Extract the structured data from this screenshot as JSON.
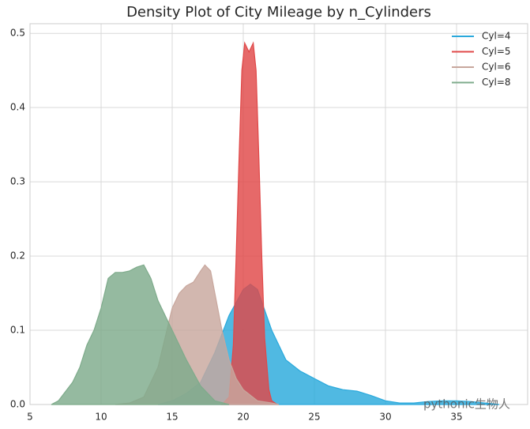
{
  "chart_data": {
    "type": "area",
    "title": "Density Plot of City Mileage by n_Cylinders",
    "xlim": [
      5,
      40
    ],
    "ylim": [
      0,
      0.513
    ],
    "xticks": [
      5,
      10,
      15,
      20,
      25,
      30,
      35
    ],
    "yticks": [
      {
        "value": 0,
        "label": "0.0"
      },
      0.1,
      0.2,
      0.3,
      0.4,
      0.5
    ],
    "grid": true,
    "legend": "upper right",
    "watermark": "pythonic生物人",
    "series": [
      {
        "name": "Cyl=4",
        "color": "#2aa9dc",
        "x": [
          14,
          15,
          16,
          17,
          18,
          19,
          20,
          20.5,
          21,
          22,
          23,
          24,
          25,
          26,
          27,
          28,
          29,
          30,
          31,
          32,
          33,
          34,
          35,
          36,
          37,
          38
        ],
        "values": [
          0,
          0.005,
          0.015,
          0.03,
          0.07,
          0.12,
          0.155,
          0.162,
          0.155,
          0.1,
          0.06,
          0.045,
          0.035,
          0.025,
          0.02,
          0.018,
          0.012,
          0.005,
          0.002,
          0.002,
          0.004,
          0.005,
          0.005,
          0.004,
          0.002,
          0
        ]
      },
      {
        "name": "Cyl=5",
        "color": "#e04848",
        "x": [
          18.5,
          19,
          19.3,
          19.5,
          19.7,
          19.9,
          20.1,
          20.4,
          20.7,
          20.9,
          21.1,
          21.3,
          21.5,
          21.8,
          22,
          22.4
        ],
        "values": [
          0,
          0.01,
          0.08,
          0.2,
          0.33,
          0.45,
          0.487,
          0.475,
          0.487,
          0.45,
          0.33,
          0.2,
          0.09,
          0.02,
          0.005,
          0
        ]
      },
      {
        "name": "Cyl=6",
        "color": "#c8a79d",
        "x": [
          11,
          12,
          13,
          14,
          14.5,
          15,
          15.5,
          16,
          16.5,
          17,
          17.3,
          17.7,
          18,
          18.5,
          19,
          19.5,
          20,
          21,
          22,
          22.5
        ],
        "values": [
          0,
          0.002,
          0.01,
          0.05,
          0.09,
          0.13,
          0.15,
          0.16,
          0.165,
          0.18,
          0.188,
          0.18,
          0.15,
          0.1,
          0.06,
          0.035,
          0.02,
          0.005,
          0.002,
          0
        ]
      },
      {
        "name": "Cyl=8",
        "color": "#7eab8b",
        "x": [
          6.5,
          7,
          8,
          8.5,
          9,
          9.5,
          10,
          10.5,
          11,
          11.5,
          12,
          12.5,
          13,
          13.5,
          14,
          14.5,
          15,
          16,
          17,
          18,
          19
        ],
        "values": [
          0,
          0.005,
          0.03,
          0.05,
          0.08,
          0.1,
          0.13,
          0.17,
          0.178,
          0.178,
          0.18,
          0.185,
          0.188,
          0.17,
          0.14,
          0.12,
          0.1,
          0.06,
          0.025,
          0.005,
          0
        ]
      }
    ]
  }
}
